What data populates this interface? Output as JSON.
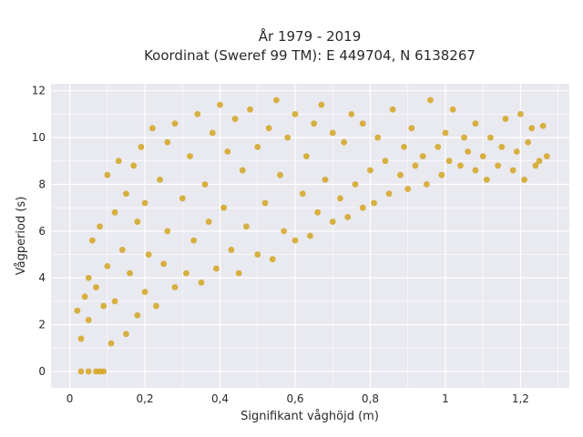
{
  "chart_data": {
    "type": "scatter",
    "title": [
      "År 1979 - 2019",
      "Koordinat (Sweref 99 TM): E 449704, N 6138267"
    ],
    "xlabel": "Signifikant våghöjd (m)",
    "ylabel": "Vågperiod (s)",
    "xlim": [
      -0.05,
      1.33
    ],
    "ylim": [
      -0.7,
      12.3
    ],
    "xticks": [
      0,
      0.2,
      0.4,
      0.6,
      0.8,
      1,
      1.2
    ],
    "xtick_labels": [
      "0",
      "0,2",
      "0,4",
      "0,6",
      "0,8",
      "1",
      "1,2"
    ],
    "yticks": [
      0,
      2,
      4,
      6,
      8,
      10,
      12
    ],
    "ytick_labels": [
      "0",
      "2",
      "4",
      "6",
      "8",
      "10",
      "12"
    ],
    "grid": true,
    "colors": {
      "plot_bg": "#e9e9f0",
      "grid": "#ffffff",
      "points": "#d4a520"
    },
    "series": [
      {
        "points": [
          [
            0.03,
            0
          ],
          [
            0.05,
            0
          ],
          [
            0.07,
            0
          ],
          [
            0.08,
            0
          ],
          [
            0.09,
            0
          ],
          [
            0.02,
            2.6
          ],
          [
            0.03,
            1.4
          ],
          [
            0.04,
            3.2
          ],
          [
            0.05,
            4.0
          ],
          [
            0.05,
            2.2
          ],
          [
            0.06,
            5.6
          ],
          [
            0.07,
            3.6
          ],
          [
            0.08,
            6.2
          ],
          [
            0.09,
            2.8
          ],
          [
            0.1,
            8.4
          ],
          [
            0.1,
            4.5
          ],
          [
            0.11,
            1.2
          ],
          [
            0.12,
            6.8
          ],
          [
            0.12,
            3.0
          ],
          [
            0.13,
            9.0
          ],
          [
            0.14,
            5.2
          ],
          [
            0.15,
            7.6
          ],
          [
            0.15,
            1.6
          ],
          [
            0.16,
            4.2
          ],
          [
            0.17,
            8.8
          ],
          [
            0.18,
            2.4
          ],
          [
            0.18,
            6.4
          ],
          [
            0.19,
            9.6
          ],
          [
            0.2,
            3.4
          ],
          [
            0.2,
            7.2
          ],
          [
            0.21,
            5.0
          ],
          [
            0.22,
            10.4
          ],
          [
            0.23,
            2.8
          ],
          [
            0.24,
            8.2
          ],
          [
            0.25,
            4.6
          ],
          [
            0.26,
            9.8
          ],
          [
            0.26,
            6.0
          ],
          [
            0.28,
            3.6
          ],
          [
            0.28,
            10.6
          ],
          [
            0.3,
            7.4
          ],
          [
            0.31,
            4.2
          ],
          [
            0.32,
            9.2
          ],
          [
            0.33,
            5.6
          ],
          [
            0.34,
            11.0
          ],
          [
            0.35,
            3.8
          ],
          [
            0.36,
            8.0
          ],
          [
            0.37,
            6.4
          ],
          [
            0.38,
            10.2
          ],
          [
            0.39,
            4.4
          ],
          [
            0.4,
            11.4
          ],
          [
            0.41,
            7.0
          ],
          [
            0.42,
            9.4
          ],
          [
            0.43,
            5.2
          ],
          [
            0.44,
            10.8
          ],
          [
            0.45,
            4.2
          ],
          [
            0.46,
            8.6
          ],
          [
            0.47,
            6.2
          ],
          [
            0.48,
            11.2
          ],
          [
            0.5,
            5.0
          ],
          [
            0.5,
            9.6
          ],
          [
            0.52,
            7.2
          ],
          [
            0.53,
            10.4
          ],
          [
            0.54,
            4.8
          ],
          [
            0.55,
            11.6
          ],
          [
            0.56,
            8.4
          ],
          [
            0.57,
            6.0
          ],
          [
            0.58,
            10.0
          ],
          [
            0.6,
            5.6
          ],
          [
            0.6,
            11.0
          ],
          [
            0.62,
            7.6
          ],
          [
            0.63,
            9.2
          ],
          [
            0.64,
            5.8
          ],
          [
            0.65,
            10.6
          ],
          [
            0.66,
            6.8
          ],
          [
            0.67,
            11.4
          ],
          [
            0.68,
            8.2
          ],
          [
            0.7,
            6.4
          ],
          [
            0.7,
            10.2
          ],
          [
            0.72,
            7.4
          ],
          [
            0.73,
            9.8
          ],
          [
            0.74,
            6.6
          ],
          [
            0.75,
            11.0
          ],
          [
            0.76,
            8.0
          ],
          [
            0.78,
            7.0
          ],
          [
            0.78,
            10.6
          ],
          [
            0.8,
            8.6
          ],
          [
            0.81,
            7.2
          ],
          [
            0.82,
            10.0
          ],
          [
            0.84,
            9.0
          ],
          [
            0.85,
            7.6
          ],
          [
            0.86,
            11.2
          ],
          [
            0.88,
            8.4
          ],
          [
            0.89,
            9.6
          ],
          [
            0.9,
            7.8
          ],
          [
            0.91,
            10.4
          ],
          [
            0.92,
            8.8
          ],
          [
            0.94,
            9.2
          ],
          [
            0.95,
            8.0
          ],
          [
            0.96,
            11.6
          ],
          [
            0.98,
            9.6
          ],
          [
            0.99,
            8.4
          ],
          [
            1.0,
            10.2
          ],
          [
            1.01,
            9.0
          ],
          [
            1.02,
            11.2
          ],
          [
            1.04,
            8.8
          ],
          [
            1.05,
            10.0
          ],
          [
            1.06,
            9.4
          ],
          [
            1.08,
            8.6
          ],
          [
            1.08,
            10.6
          ],
          [
            1.1,
            9.2
          ],
          [
            1.11,
            8.2
          ],
          [
            1.12,
            10.0
          ],
          [
            1.14,
            8.8
          ],
          [
            1.15,
            9.6
          ],
          [
            1.16,
            10.8
          ],
          [
            1.18,
            8.6
          ],
          [
            1.19,
            9.4
          ],
          [
            1.2,
            11.0
          ],
          [
            1.21,
            8.2
          ],
          [
            1.22,
            9.8
          ],
          [
            1.23,
            10.4
          ],
          [
            1.24,
            8.8
          ],
          [
            1.25,
            9.0
          ],
          [
            1.26,
            10.5
          ],
          [
            1.27,
            9.2
          ]
        ]
      }
    ]
  }
}
